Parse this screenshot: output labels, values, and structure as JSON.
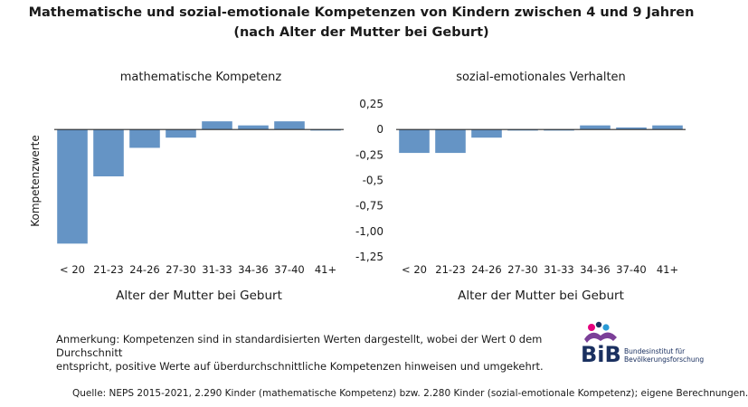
{
  "title_line1": "Mathematische und sozial-emotionale Kompetenzen von Kindern zwischen 4 und 9 Jahren",
  "title_line2": "(nach Alter der Mutter bei Geburt)",
  "chart_data": [
    {
      "type": "bar",
      "subtitle": "mathematische Kompetenz",
      "categories": [
        "< 20",
        "21-23",
        "24-26",
        "27-30",
        "31-33",
        "34-36",
        "37-40",
        "41+"
      ],
      "values": [
        -1.12,
        -0.46,
        -0.18,
        -0.08,
        0.08,
        0.04,
        0.08,
        -0.01
      ],
      "xlabel": "Alter der Mutter bei Geburt",
      "ylabel": "Kompetenzwerte",
      "ylim": [
        -1.25,
        0.25
      ],
      "yticks": [
        "0,25",
        "0",
        "-0,25",
        "-0,5",
        "-0,75",
        "-1,00",
        "-1,25"
      ],
      "ytick_values": [
        0.25,
        0,
        -0.25,
        -0.5,
        -0.75,
        -1.0,
        -1.25
      ],
      "bar_color": "#6594c5"
    },
    {
      "type": "bar",
      "subtitle": "sozial-emotionales Verhalten",
      "categories": [
        "< 20",
        "21-23",
        "24-26",
        "27-30",
        "31-33",
        "34-36",
        "37-40",
        "41+"
      ],
      "values": [
        -0.23,
        -0.23,
        -0.08,
        -0.01,
        -0.01,
        0.04,
        0.02,
        0.04
      ],
      "xlabel": "Alter der Mutter bei Geburt",
      "ylim": [
        -1.25,
        0.25
      ],
      "bar_color": "#6594c5"
    }
  ],
  "note_line1": "Anmerkung: Kompetenzen sind in standardisierten Werten dargestellt, wobei der Wert 0 dem Durchschnitt",
  "note_line2": "entspricht, positive Werte auf überdurchschnittliche Kompetenzen hinweisen und umgekehrt.",
  "source": "Quelle: NEPS 2015-2021, 2.290 Kinder (mathematische Kompetenz) bzw. 2.280 Kinder (sozial-emotionale Kompetenz); eigene Berechnungen.",
  "logo": {
    "acronym": "BiB",
    "line1": "Bundesinstitut für",
    "line2": "Bevölkerungsforschung",
    "colors": [
      "#e5007d",
      "#1a3060",
      "#2a9bd6",
      "#7b3f98"
    ]
  }
}
